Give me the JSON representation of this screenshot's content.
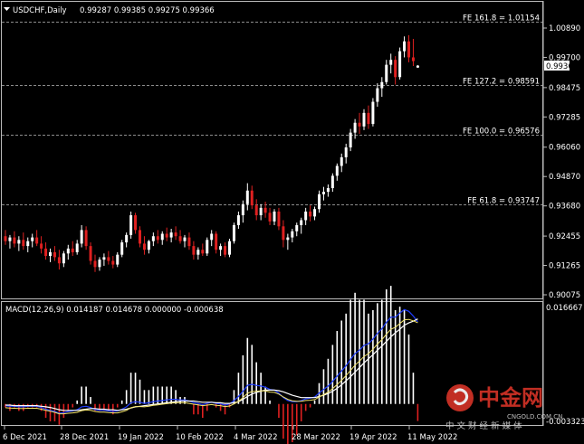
{
  "header": {
    "symbol": "USDCHF,Daily",
    "ohlc": "0.99287 0.99385 0.99275 0.99366"
  },
  "price_axis": {
    "ticks": [
      "1.00890",
      "0.99700",
      "0.98475",
      "0.97285",
      "0.96060",
      "0.94870",
      "0.93680",
      "0.92455",
      "0.91265",
      "0.90075"
    ],
    "current_price": "0.99366"
  },
  "fib_levels": [
    {
      "label": "FE 161.8 = 1.01154",
      "value": 1.01154
    },
    {
      "label": "FE 127.2 = 0.98591",
      "value": 0.98591
    },
    {
      "label": "FE 100.0 = 0.96576",
      "value": 0.96576
    },
    {
      "label": "FE 61.8 = 0.93747",
      "value": 0.93747
    }
  ],
  "macd": {
    "label": "MACD(12,26,9) 0.014187 0.014678 0.000000 -0.000638",
    "axis_top": "0.016667",
    "axis_bottom": "-0.003323"
  },
  "time_axis": {
    "labels": [
      "6 Dec 2021",
      "28 Dec 2021",
      "19 Jan 2022",
      "10 Feb 2022",
      "4 Mar 2022",
      "28 Mar 2022",
      "19 Apr 2022",
      "11 May 2022"
    ]
  },
  "watermark": {
    "brand_cn": "中金网",
    "brand_en": "CNGOLD.COM.CN",
    "slogan_cn": "中 文 财 经 新 媒 体"
  },
  "colors": {
    "bull": "#ffffff",
    "bear": "#e02020",
    "macd_main": "#ffffff",
    "macd_signal": "#1e3cff",
    "macd_hist_pos": "#ffffff",
    "macd_hist_neg": "#e02020",
    "signal_line": "#f5e66a",
    "grid_line": "#bbbbbb",
    "logo_red": "#d23227"
  },
  "chart_data": {
    "type": "candlestick",
    "title": "USDCHF,Daily",
    "ylim": [
      0.90075,
      1.0089
    ],
    "candles": [
      {
        "o": 0.9245,
        "h": 0.927,
        "l": 0.921,
        "c": 0.9225
      },
      {
        "o": 0.9225,
        "h": 0.925,
        "l": 0.9195,
        "c": 0.924
      },
      {
        "o": 0.924,
        "h": 0.9265,
        "l": 0.92,
        "c": 0.9215
      },
      {
        "o": 0.9215,
        "h": 0.9245,
        "l": 0.9185,
        "c": 0.923
      },
      {
        "o": 0.923,
        "h": 0.926,
        "l": 0.919,
        "c": 0.9205
      },
      {
        "o": 0.9205,
        "h": 0.924,
        "l": 0.918,
        "c": 0.9225
      },
      {
        "o": 0.9225,
        "h": 0.9255,
        "l": 0.92,
        "c": 0.924
      },
      {
        "o": 0.924,
        "h": 0.927,
        "l": 0.9205,
        "c": 0.9215
      },
      {
        "o": 0.9215,
        "h": 0.9245,
        "l": 0.9175,
        "c": 0.9195
      },
      {
        "o": 0.9195,
        "h": 0.922,
        "l": 0.915,
        "c": 0.9165
      },
      {
        "o": 0.9165,
        "h": 0.9195,
        "l": 0.914,
        "c": 0.918
      },
      {
        "o": 0.918,
        "h": 0.9205,
        "l": 0.9145,
        "c": 0.916
      },
      {
        "o": 0.916,
        "h": 0.919,
        "l": 0.911,
        "c": 0.9135
      },
      {
        "o": 0.9135,
        "h": 0.9185,
        "l": 0.912,
        "c": 0.9175
      },
      {
        "o": 0.9175,
        "h": 0.921,
        "l": 0.915,
        "c": 0.9195
      },
      {
        "o": 0.9195,
        "h": 0.9225,
        "l": 0.9165,
        "c": 0.918
      },
      {
        "o": 0.918,
        "h": 0.923,
        "l": 0.917,
        "c": 0.9215
      },
      {
        "o": 0.9215,
        "h": 0.929,
        "l": 0.92,
        "c": 0.927
      },
      {
        "o": 0.927,
        "h": 0.9285,
        "l": 0.919,
        "c": 0.9205
      },
      {
        "o": 0.9205,
        "h": 0.922,
        "l": 0.913,
        "c": 0.9145
      },
      {
        "o": 0.9145,
        "h": 0.917,
        "l": 0.91,
        "c": 0.912
      },
      {
        "o": 0.912,
        "h": 0.916,
        "l": 0.9105,
        "c": 0.915
      },
      {
        "o": 0.915,
        "h": 0.9175,
        "l": 0.9125,
        "c": 0.916
      },
      {
        "o": 0.916,
        "h": 0.9185,
        "l": 0.913,
        "c": 0.9145
      },
      {
        "o": 0.9145,
        "h": 0.9165,
        "l": 0.9115,
        "c": 0.913
      },
      {
        "o": 0.913,
        "h": 0.918,
        "l": 0.912,
        "c": 0.917
      },
      {
        "o": 0.917,
        "h": 0.923,
        "l": 0.916,
        "c": 0.922
      },
      {
        "o": 0.922,
        "h": 0.926,
        "l": 0.92,
        "c": 0.925
      },
      {
        "o": 0.925,
        "h": 0.9345,
        "l": 0.9235,
        "c": 0.933
      },
      {
        "o": 0.933,
        "h": 0.934,
        "l": 0.9255,
        "c": 0.927
      },
      {
        "o": 0.927,
        "h": 0.9285,
        "l": 0.92,
        "c": 0.9215
      },
      {
        "o": 0.9215,
        "h": 0.9245,
        "l": 0.917,
        "c": 0.919
      },
      {
        "o": 0.919,
        "h": 0.923,
        "l": 0.9175,
        "c": 0.9225
      },
      {
        "o": 0.9225,
        "h": 0.926,
        "l": 0.9205,
        "c": 0.9245
      },
      {
        "o": 0.9245,
        "h": 0.927,
        "l": 0.9215,
        "c": 0.923
      },
      {
        "o": 0.923,
        "h": 0.9265,
        "l": 0.921,
        "c": 0.9255
      },
      {
        "o": 0.9255,
        "h": 0.928,
        "l": 0.9225,
        "c": 0.924
      },
      {
        "o": 0.924,
        "h": 0.9275,
        "l": 0.922,
        "c": 0.926
      },
      {
        "o": 0.926,
        "h": 0.9285,
        "l": 0.923,
        "c": 0.9245
      },
      {
        "o": 0.9245,
        "h": 0.927,
        "l": 0.9215,
        "c": 0.9225
      },
      {
        "o": 0.9225,
        "h": 0.925,
        "l": 0.92,
        "c": 0.924
      },
      {
        "o": 0.924,
        "h": 0.926,
        "l": 0.919,
        "c": 0.9205
      },
      {
        "o": 0.9205,
        "h": 0.9225,
        "l": 0.915,
        "c": 0.917
      },
      {
        "o": 0.917,
        "h": 0.92,
        "l": 0.915,
        "c": 0.919
      },
      {
        "o": 0.919,
        "h": 0.9215,
        "l": 0.9165,
        "c": 0.9175
      },
      {
        "o": 0.9175,
        "h": 0.924,
        "l": 0.9165,
        "c": 0.923
      },
      {
        "o": 0.923,
        "h": 0.927,
        "l": 0.9205,
        "c": 0.9255
      },
      {
        "o": 0.9255,
        "h": 0.9265,
        "l": 0.9175,
        "c": 0.919
      },
      {
        "o": 0.919,
        "h": 0.9215,
        "l": 0.9165,
        "c": 0.9205
      },
      {
        "o": 0.9205,
        "h": 0.922,
        "l": 0.916,
        "c": 0.917
      },
      {
        "o": 0.917,
        "h": 0.9235,
        "l": 0.916,
        "c": 0.9225
      },
      {
        "o": 0.9225,
        "h": 0.93,
        "l": 0.9215,
        "c": 0.929
      },
      {
        "o": 0.929,
        "h": 0.9345,
        "l": 0.9275,
        "c": 0.933
      },
      {
        "o": 0.933,
        "h": 0.939,
        "l": 0.93,
        "c": 0.9375
      },
      {
        "o": 0.9375,
        "h": 0.946,
        "l": 0.935,
        "c": 0.943
      },
      {
        "o": 0.943,
        "h": 0.945,
        "l": 0.9355,
        "c": 0.937
      },
      {
        "o": 0.937,
        "h": 0.9395,
        "l": 0.931,
        "c": 0.933
      },
      {
        "o": 0.933,
        "h": 0.9375,
        "l": 0.931,
        "c": 0.936
      },
      {
        "o": 0.936,
        "h": 0.9385,
        "l": 0.932,
        "c": 0.934
      },
      {
        "o": 0.934,
        "h": 0.936,
        "l": 0.929,
        "c": 0.9305
      },
      {
        "o": 0.9305,
        "h": 0.9355,
        "l": 0.929,
        "c": 0.9345
      },
      {
        "o": 0.9345,
        "h": 0.936,
        "l": 0.927,
        "c": 0.9285
      },
      {
        "o": 0.9285,
        "h": 0.931,
        "l": 0.92,
        "c": 0.923
      },
      {
        "o": 0.923,
        "h": 0.9255,
        "l": 0.919,
        "c": 0.924
      },
      {
        "o": 0.924,
        "h": 0.9275,
        "l": 0.922,
        "c": 0.9265
      },
      {
        "o": 0.9265,
        "h": 0.93,
        "l": 0.9245,
        "c": 0.929
      },
      {
        "o": 0.929,
        "h": 0.932,
        "l": 0.9255,
        "c": 0.931
      },
      {
        "o": 0.931,
        "h": 0.936,
        "l": 0.929,
        "c": 0.9345
      },
      {
        "o": 0.9345,
        "h": 0.937,
        "l": 0.9305,
        "c": 0.9325
      },
      {
        "o": 0.9325,
        "h": 0.9365,
        "l": 0.931,
        "c": 0.9355
      },
      {
        "o": 0.9355,
        "h": 0.943,
        "l": 0.934,
        "c": 0.9415
      },
      {
        "o": 0.9415,
        "h": 0.9445,
        "l": 0.939,
        "c": 0.9425
      },
      {
        "o": 0.9425,
        "h": 0.9455,
        "l": 0.9405,
        "c": 0.944
      },
      {
        "o": 0.944,
        "h": 0.95,
        "l": 0.9425,
        "c": 0.949
      },
      {
        "o": 0.949,
        "h": 0.954,
        "l": 0.947,
        "c": 0.953
      },
      {
        "o": 0.953,
        "h": 0.958,
        "l": 0.9505,
        "c": 0.9565
      },
      {
        "o": 0.9565,
        "h": 0.962,
        "l": 0.954,
        "c": 0.9605
      },
      {
        "o": 0.9605,
        "h": 0.968,
        "l": 0.959,
        "c": 0.9665
      },
      {
        "o": 0.9665,
        "h": 0.972,
        "l": 0.964,
        "c": 0.9705
      },
      {
        "o": 0.9705,
        "h": 0.9745,
        "l": 0.966,
        "c": 0.969
      },
      {
        "o": 0.969,
        "h": 0.976,
        "l": 0.9675,
        "c": 0.9745
      },
      {
        "o": 0.9745,
        "h": 0.9775,
        "l": 0.968,
        "c": 0.97
      },
      {
        "o": 0.97,
        "h": 0.9805,
        "l": 0.969,
        "c": 0.979
      },
      {
        "o": 0.979,
        "h": 0.9865,
        "l": 0.977,
        "c": 0.9845
      },
      {
        "o": 0.9845,
        "h": 0.989,
        "l": 0.981,
        "c": 0.987
      },
      {
        "o": 0.987,
        "h": 0.996,
        "l": 0.986,
        "c": 0.994
      },
      {
        "o": 0.994,
        "h": 0.9985,
        "l": 0.9905,
        "c": 0.996
      },
      {
        "o": 0.996,
        "h": 0.9975,
        "l": 0.986,
        "c": 0.989
      },
      {
        "o": 0.989,
        "h": 1.001,
        "l": 0.988,
        "c": 0.9995
      },
      {
        "o": 0.9995,
        "h": 1.0055,
        "l": 0.997,
        "c": 1.0035
      },
      {
        "o": 1.0035,
        "h": 1.006,
        "l": 0.995,
        "c": 0.997
      },
      {
        "o": 0.997,
        "h": 1.0045,
        "l": 0.9935,
        "c": 0.9955
      },
      {
        "o": 0.99287,
        "h": 0.99385,
        "l": 0.99275,
        "c": 0.99366
      }
    ],
    "macd": [
      {
        "m": -0.0003,
        "s": -0.0002
      },
      {
        "m": -0.0004,
        "s": -0.0002
      },
      {
        "m": -0.0004,
        "s": -0.0003
      },
      {
        "m": -0.0005,
        "s": -0.0003
      },
      {
        "m": -0.0005,
        "s": -0.0003
      },
      {
        "m": -0.0004,
        "s": -0.0003
      },
      {
        "m": -0.0004,
        "s": -0.0003
      },
      {
        "m": -0.0004,
        "s": -0.0003
      },
      {
        "m": -0.0006,
        "s": -0.0004
      },
      {
        "m": -0.0009,
        "s": -0.0005
      },
      {
        "m": -0.0011,
        "s": -0.0006
      },
      {
        "m": -0.0013,
        "s": -0.0008
      },
      {
        "m": -0.0016,
        "s": -0.001
      },
      {
        "m": -0.0015,
        "s": -0.0011
      },
      {
        "m": -0.0013,
        "s": -0.0011
      },
      {
        "m": -0.0012,
        "s": -0.0011
      },
      {
        "m": -0.001,
        "s": -0.0011
      },
      {
        "m": -0.0005,
        "s": -0.001
      },
      {
        "m": -0.0004,
        "s": -0.0009
      },
      {
        "m": -0.0006,
        "s": -0.0008
      },
      {
        "m": -0.001,
        "s": -0.0008
      },
      {
        "m": -0.0011,
        "s": -0.0009
      },
      {
        "m": -0.0011,
        "s": -0.0009
      },
      {
        "m": -0.0012,
        "s": -0.001
      },
      {
        "m": -0.0013,
        "s": -0.001
      },
      {
        "m": -0.0012,
        "s": -0.0011
      },
      {
        "m": -0.0009,
        "s": -0.001
      },
      {
        "m": -0.0005,
        "s": -0.0009
      },
      {
        "m": 0.0002,
        "s": -0.0007
      },
      {
        "m": 0.0004,
        "s": -0.0005
      },
      {
        "m": 0.0003,
        "s": -0.0004
      },
      {
        "m": 0.0001,
        "s": -0.0003
      },
      {
        "m": 0.0002,
        "s": -0.0002
      },
      {
        "m": 0.0004,
        "s": -0.0001
      },
      {
        "m": 0.0005,
        "s": 0.0
      },
      {
        "m": 0.0006,
        "s": 0.0001
      },
      {
        "m": 0.0007,
        "s": 0.0002
      },
      {
        "m": 0.0008,
        "s": 0.0003
      },
      {
        "m": 0.0008,
        "s": 0.0004
      },
      {
        "m": 0.0007,
        "s": 0.0005
      },
      {
        "m": 0.0007,
        "s": 0.0005
      },
      {
        "m": 0.0005,
        "s": 0.0005
      },
      {
        "m": 0.0002,
        "s": 0.0005
      },
      {
        "m": 0.0001,
        "s": 0.0004
      },
      {
        "m": -0.0001,
        "s": 0.0003
      },
      {
        "m": 0.0001,
        "s": 0.0003
      },
      {
        "m": 0.0003,
        "s": 0.0003
      },
      {
        "m": 0.0001,
        "s": 0.0002
      },
      {
        "m": 0.0,
        "s": 0.0002
      },
      {
        "m": -0.0002,
        "s": 0.0001
      },
      {
        "m": 0.0,
        "s": 0.0001
      },
      {
        "m": 0.0006,
        "s": 0.0002
      },
      {
        "m": 0.0013,
        "s": 0.0004
      },
      {
        "m": 0.0022,
        "s": 0.0008
      },
      {
        "m": 0.0032,
        "s": 0.0013
      },
      {
        "m": 0.0034,
        "s": 0.0017
      },
      {
        "m": 0.0032,
        "s": 0.002
      },
      {
        "m": 0.0031,
        "s": 0.0022
      },
      {
        "m": 0.0029,
        "s": 0.0024
      },
      {
        "m": 0.0025,
        "s": 0.0024
      },
      {
        "m": 0.0024,
        "s": 0.0024
      },
      {
        "m": 0.0019,
        "s": 0.0023
      },
      {
        "m": 0.0011,
        "s": 0.0021
      },
      {
        "m": 0.0006,
        "s": 0.0018
      },
      {
        "m": 0.0004,
        "s": 0.0015
      },
      {
        "m": 0.0004,
        "s": 0.0013
      },
      {
        "m": 0.0006,
        "s": 0.0011
      },
      {
        "m": 0.0009,
        "s": 0.0011
      },
      {
        "m": 0.001,
        "s": 0.0011
      },
      {
        "m": 0.0012,
        "s": 0.0011
      },
      {
        "m": 0.0019,
        "s": 0.0013
      },
      {
        "m": 0.0025,
        "s": 0.0015
      },
      {
        "m": 0.0031,
        "s": 0.0018
      },
      {
        "m": 0.0039,
        "s": 0.0022
      },
      {
        "m": 0.0048,
        "s": 0.0027
      },
      {
        "m": 0.0057,
        "s": 0.0033
      },
      {
        "m": 0.0066,
        "s": 0.004
      },
      {
        "m": 0.0077,
        "s": 0.0047
      },
      {
        "m": 0.0087,
        "s": 0.0055
      },
      {
        "m": 0.0093,
        "s": 0.0063
      },
      {
        "m": 0.0101,
        "s": 0.0071
      },
      {
        "m": 0.0104,
        "s": 0.0078
      },
      {
        "m": 0.0112,
        "s": 0.0085
      },
      {
        "m": 0.0122,
        "s": 0.0093
      },
      {
        "m": 0.013,
        "s": 0.01
      },
      {
        "m": 0.0141,
        "s": 0.0108
      },
      {
        "m": 0.015,
        "s": 0.0116
      },
      {
        "m": 0.015,
        "s": 0.0123
      },
      {
        "m": 0.0157,
        "s": 0.0129
      },
      {
        "m": 0.0163,
        "s": 0.0136
      },
      {
        "m": 0.016,
        "s": 0.014
      },
      {
        "m": 0.0152,
        "s": 0.0143
      },
      {
        "m": 0.014187,
        "s": 0.014678
      }
    ],
    "macd_range": [
      -0.003323,
      0.016667
    ]
  }
}
